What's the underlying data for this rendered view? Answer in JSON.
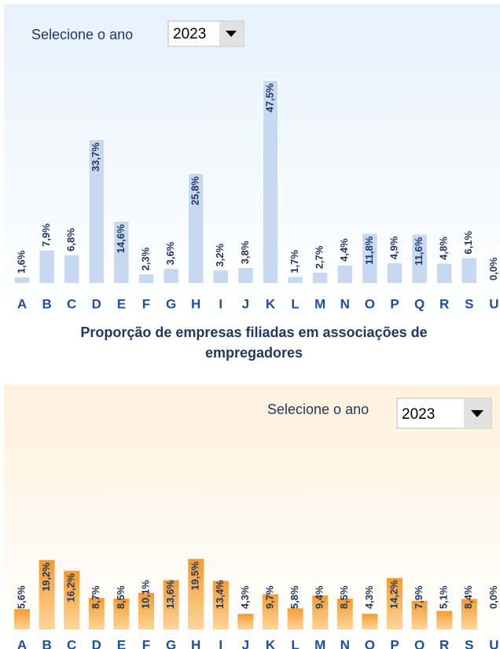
{
  "chart_data": [
    {
      "type": "bar",
      "selector_label": "Selecione o ano",
      "selected_year": "2023",
      "color": "#c6d9f1",
      "categories": [
        "A",
        "B",
        "C",
        "D",
        "E",
        "F",
        "G",
        "H",
        "I",
        "J",
        "K",
        "L",
        "M",
        "N",
        "O",
        "P",
        "Q",
        "R",
        "S",
        "U"
      ],
      "values": [
        1.6,
        7.9,
        6.8,
        33.7,
        14.6,
        2.3,
        3.6,
        25.8,
        3.2,
        3.8,
        47.5,
        1.7,
        2.7,
        4.4,
        11.8,
        4.9,
        11.6,
        4.8,
        6.1,
        0.0
      ],
      "value_labels": [
        "1,6%",
        "7,9%",
        "6,8%",
        "33,7%",
        "14,6%",
        "2,3%",
        "3,6%",
        "25,8%",
        "3,2%",
        "3,8%",
        "47,5%",
        "1,7%",
        "2,7%",
        "4,4%",
        "11,8%",
        "4,9%",
        "11,6%",
        "4,8%",
        "6,1%",
        "0,0%"
      ]
    },
    {
      "type": "bar",
      "title": "Proporção de empresas filiadas em associações de empregadores",
      "selector_label": "Selecione o ano",
      "selected_year": "2023",
      "color": "#f7a23b",
      "categories": [
        "A",
        "B",
        "C",
        "D",
        "E",
        "F",
        "G",
        "H",
        "I",
        "J",
        "K",
        "L",
        "M",
        "N",
        "O",
        "P",
        "Q",
        "R",
        "S",
        "U"
      ],
      "values": [
        5.6,
        19.2,
        16.2,
        8.7,
        8.5,
        10.1,
        13.6,
        19.5,
        13.4,
        4.3,
        9.7,
        5.8,
        9.4,
        8.5,
        4.3,
        14.2,
        7.9,
        5.1,
        8.4,
        0.0
      ],
      "value_labels": [
        "5,6%",
        "19,2%",
        "16,2%",
        "8,7%",
        "8,5%",
        "10,1%",
        "13,6%",
        "19,5%",
        "13,4%",
        "4,3%",
        "9,7%",
        "5,8%",
        "9,4%",
        "8,5%",
        "4,3%",
        "14,2%",
        "7,9%",
        "5,1%",
        "8,4%",
        "0,0%"
      ]
    }
  ]
}
